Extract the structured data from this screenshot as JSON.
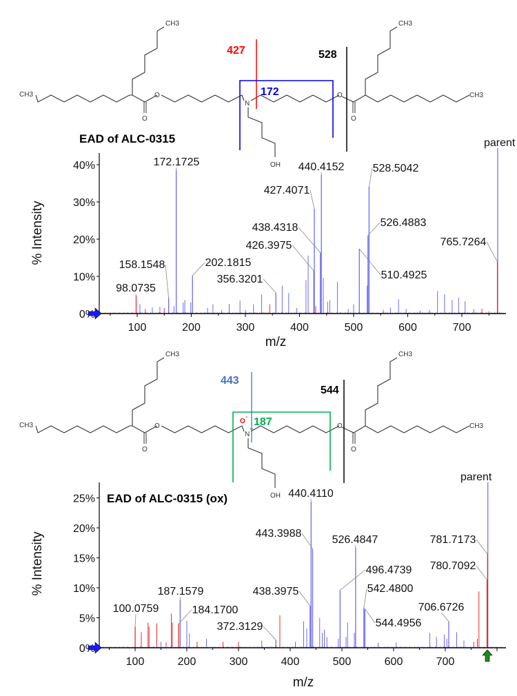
{
  "colors": {
    "blue_peak": "#6a6af2",
    "red_peak": "#ee2a2a",
    "fragment_427": "#ff0000",
    "fragment_172": "#0000ee",
    "fragment_443": "#4472c4",
    "fragment_187": "#00b050",
    "cleavage_black": "#000000"
  },
  "structures": [
    {
      "title": "EAD of ALC-0315",
      "fragments": [
        {
          "label": "427",
          "color": "#ff0000"
        },
        {
          "label": "528",
          "color": "#000000"
        },
        {
          "label": "172",
          "color": "#0000ee"
        }
      ],
      "atoms": {
        "ch3": "CH3",
        "o": "O",
        "n": "N",
        "oh": "OH"
      }
    },
    {
      "title": "EAD of ALC-0315 (ox)",
      "fragments": [
        {
          "label": "443",
          "color": "#4472c4"
        },
        {
          "label": "544",
          "color": "#000000"
        },
        {
          "label": "187",
          "color": "#00b050"
        }
      ],
      "atoms": {
        "ch3": "CH3",
        "o": "O",
        "n": "N",
        "oh": "OH",
        "oxide": "O",
        "oxide_charge": "-",
        "n_charge": "+"
      }
    }
  ],
  "chart_data": [
    {
      "type": "bar",
      "title": "EAD of ALC-0315",
      "xlabel": "m/z",
      "ylabel": "% Intensity",
      "xlim": [
        30,
        781
      ],
      "ylim": [
        0,
        43
      ],
      "xticks": [
        100,
        200,
        300,
        400,
        500,
        600,
        700
      ],
      "yticks": [
        "0%",
        "10%",
        "20%",
        "30%",
        "40%"
      ],
      "ytick_values": [
        0,
        10,
        20,
        30,
        40
      ],
      "parent_label": "parent",
      "labeled_peaks": [
        {
          "mz": 172.1725,
          "intensity": 38.5,
          "label": "172.1725",
          "color": "blue"
        },
        {
          "mz": 440.4152,
          "intensity": 37.3,
          "label": "440.4152",
          "color": "blue"
        },
        {
          "mz": 528.5042,
          "intensity": 34.1,
          "label": "528.5042",
          "color": "blue"
        },
        {
          "mz": 427.4071,
          "intensity": 28.1,
          "label": "427.4071",
          "color": "blue"
        },
        {
          "mz": 438.4318,
          "intensity": 16.4,
          "label": "438.4318",
          "color": "blue"
        },
        {
          "mz": 426.3975,
          "intensity": 11.5,
          "label": "426.3975",
          "color": "blue"
        },
        {
          "mz": 526.4883,
          "intensity": 21.0,
          "label": "526.4883",
          "color": "blue"
        },
        {
          "mz": 765.7264,
          "intensity": 13.9,
          "label": "765.7264",
          "color": "red"
        },
        {
          "mz": 510.4925,
          "intensity": 17.4,
          "label": "510.4925",
          "color": "blue"
        },
        {
          "mz": 202.1815,
          "intensity": 10.2,
          "label": "202.1815",
          "color": "blue"
        },
        {
          "mz": 158.1548,
          "intensity": 4.2,
          "label": "158.1548",
          "color": "blue"
        },
        {
          "mz": 356.3201,
          "intensity": 5.6,
          "label": "356.3201",
          "color": "blue"
        },
        {
          "mz": 98.0735,
          "intensity": 4.8,
          "label": "98.0735",
          "color": "red"
        }
      ],
      "parent_peak": {
        "mz": 766.2,
        "intensity": 44.5,
        "color": "blue"
      },
      "minor_peaks": [
        [
          105,
          2.5,
          "blue"
        ],
        [
          115,
          1.2,
          "red"
        ],
        [
          128,
          1.6,
          "blue"
        ],
        [
          142,
          1.8,
          "blue"
        ],
        [
          150,
          1.5,
          "red"
        ],
        [
          168,
          2.0,
          "blue"
        ],
        [
          185,
          3.0,
          "blue"
        ],
        [
          188,
          3.6,
          "blue"
        ],
        [
          199,
          3.0,
          "blue"
        ],
        [
          230,
          1.5,
          "blue"
        ],
        [
          240,
          2.5,
          "blue"
        ],
        [
          256,
          1.0,
          "blue"
        ],
        [
          270,
          2.6,
          "blue"
        ],
        [
          290,
          3.5,
          "blue"
        ],
        [
          300,
          1.0,
          "blue"
        ],
        [
          315,
          2.5,
          "blue"
        ],
        [
          330,
          5.1,
          "blue"
        ],
        [
          345,
          2.5,
          "red"
        ],
        [
          368,
          7.5,
          "blue"
        ],
        [
          380,
          5.5,
          "blue"
        ],
        [
          395,
          1.5,
          "blue"
        ],
        [
          412,
          9.0,
          "blue"
        ],
        [
          416,
          15.6,
          "blue"
        ],
        [
          430,
          2.0,
          "red"
        ],
        [
          444,
          9.6,
          "blue"
        ],
        [
          452,
          3.2,
          "blue"
        ],
        [
          456,
          3.6,
          "blue"
        ],
        [
          470,
          8.5,
          "blue"
        ],
        [
          490,
          1.2,
          "blue"
        ],
        [
          500,
          2.5,
          "blue"
        ],
        [
          525,
          7.5,
          "blue"
        ],
        [
          555,
          1.0,
          "blue"
        ],
        [
          568,
          1.6,
          "blue"
        ],
        [
          583,
          3.8,
          "blue"
        ],
        [
          597,
          1.2,
          "blue"
        ],
        [
          623,
          0.8,
          "blue"
        ],
        [
          640,
          1.0,
          "blue"
        ],
        [
          655,
          6.0,
          "blue"
        ],
        [
          668,
          5.2,
          "blue"
        ],
        [
          682,
          3.6,
          "blue"
        ],
        [
          694,
          4.2,
          "blue"
        ],
        [
          706,
          3.3,
          "blue"
        ],
        [
          722,
          1.2,
          "blue"
        ],
        [
          737,
          1.3,
          "red"
        ],
        [
          750,
          0.6,
          "blue"
        ]
      ]
    },
    {
      "type": "bar",
      "title": "EAD of ALC-0315 (ox)",
      "xlabel": "m/z",
      "ylabel": "% Intensity",
      "xlim": [
        31,
        815
      ],
      "ylim": [
        0,
        27
      ],
      "xticks": [
        100,
        200,
        300,
        400,
        500,
        600,
        700
      ],
      "yticks": [
        "0%",
        "5%",
        "10%",
        "15%",
        "20%",
        "25%"
      ],
      "ytick_values": [
        0,
        5,
        10,
        15,
        20,
        25
      ],
      "parent_label": "parent",
      "labeled_peaks": [
        {
          "mz": 440.411,
          "intensity": 24.3,
          "label": "440.4110",
          "color": "blue"
        },
        {
          "mz": 443.3988,
          "intensity": 16.5,
          "label": "443.3988",
          "color": "blue"
        },
        {
          "mz": 526.4847,
          "intensity": 16.7,
          "label": "526.4847",
          "color": "blue"
        },
        {
          "mz": 781.7173,
          "intensity": 15.6,
          "label": "781.7173",
          "color": "red"
        },
        {
          "mz": 780.7092,
          "intensity": 11.3,
          "label": "780.7092",
          "color": "red"
        },
        {
          "mz": 496.4739,
          "intensity": 9.6,
          "label": "496.4739",
          "color": "blue"
        },
        {
          "mz": 542.48,
          "intensity": 6.7,
          "label": "542.4800",
          "color": "blue"
        },
        {
          "mz": 187.1579,
          "intensity": 8.0,
          "label": "187.1579",
          "color": "blue"
        },
        {
          "mz": 438.3975,
          "intensity": 7.0,
          "label": "438.3975",
          "color": "blue"
        },
        {
          "mz": 100.0759,
          "intensity": 3.5,
          "label": "100.0759",
          "color": "red"
        },
        {
          "mz": 184.17,
          "intensity": 4.0,
          "label": "184.1700",
          "color": "red"
        },
        {
          "mz": 706.6726,
          "intensity": 4.4,
          "label": "706.6726",
          "color": "blue"
        },
        {
          "mz": 544.4956,
          "intensity": 6.5,
          "label": "544.4956",
          "color": "blue"
        },
        {
          "mz": 372.3129,
          "intensity": 1.3,
          "label": "372.3129",
          "color": "blue"
        }
      ],
      "parent_peak": {
        "mz": 782.3,
        "intensity": 27.6,
        "color": "blue"
      },
      "minor_peaks": [
        [
          112,
          2.6,
          "red"
        ],
        [
          125,
          4.2,
          "red"
        ],
        [
          127,
          3.5,
          "red"
        ],
        [
          142,
          4.1,
          "red"
        ],
        [
          150,
          1.0,
          "blue"
        ],
        [
          160,
          0.9,
          "red"
        ],
        [
          170,
          5.7,
          "red"
        ],
        [
          172,
          4.2,
          "red"
        ],
        [
          200,
          4.5,
          "blue"
        ],
        [
          205,
          2.4,
          "blue"
        ],
        [
          220,
          1.0,
          "red"
        ],
        [
          238,
          1.5,
          "blue"
        ],
        [
          270,
          1.0,
          "red"
        ],
        [
          300,
          1.0,
          "red"
        ],
        [
          345,
          1.2,
          "blue"
        ],
        [
          380,
          5.4,
          "red"
        ],
        [
          410,
          1.0,
          "blue"
        ],
        [
          426,
          4.4,
          "blue"
        ],
        [
          432,
          3.2,
          "blue"
        ],
        [
          457,
          5.0,
          "blue"
        ],
        [
          462,
          2.5,
          "blue"
        ],
        [
          466,
          3.0,
          "blue"
        ],
        [
          471,
          1.8,
          "blue"
        ],
        [
          493,
          1.5,
          "blue"
        ],
        [
          511,
          4.2,
          "blue"
        ],
        [
          508,
          1.8,
          "blue"
        ],
        [
          524,
          2.5,
          "blue"
        ],
        [
          570,
          0.8,
          "blue"
        ],
        [
          605,
          0.9,
          "blue"
        ],
        [
          670,
          2.5,
          "blue"
        ],
        [
          683,
          1.8,
          "blue"
        ],
        [
          698,
          2.2,
          "blue"
        ],
        [
          703,
          1.5,
          "blue"
        ],
        [
          722,
          2.6,
          "blue"
        ],
        [
          736,
          1.2,
          "blue"
        ],
        [
          755,
          1.0,
          "red"
        ],
        [
          762,
          1.5,
          "red"
        ],
        [
          765,
          9.4,
          "red"
        ]
      ]
    }
  ]
}
